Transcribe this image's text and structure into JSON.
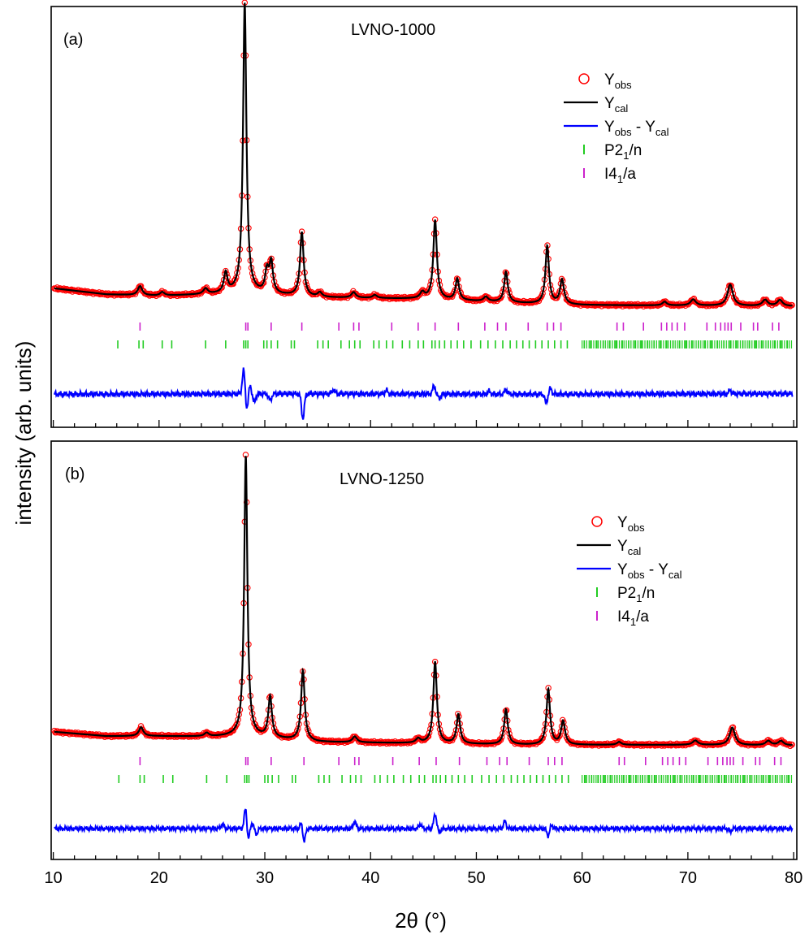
{
  "figure": {
    "ylabel": "intensity (arb. units)",
    "xlabel": "2θ (°)"
  },
  "chart_data": [
    {
      "type": "line",
      "panel_label": "(a)",
      "title": "LVNO-1000",
      "xlim": [
        9.8,
        80.3
      ],
      "x_ticks": [
        10,
        20,
        30,
        40,
        50,
        60,
        70,
        80
      ],
      "legend_position": "top-right",
      "legend": [
        {
          "kind": "circle",
          "main": "Y",
          "sub": "obs",
          "color": "#ff0000"
        },
        {
          "kind": "line",
          "main": "Y",
          "sub": "cal",
          "color": "#000000"
        },
        {
          "kind": "diff",
          "main": "Y",
          "sub": "obs",
          "main2": " -  Y",
          "sub2": "cal",
          "color": "#0000ff"
        },
        {
          "kind": "tick",
          "main": "P2",
          "sub": "1",
          "tail": "/n",
          "color": "#22cc22"
        },
        {
          "kind": "tick",
          "main": "I4",
          "sub": "1",
          "tail": "/a",
          "color": "#cc22cc"
        }
      ],
      "background": [
        [
          10,
          0.075
        ],
        [
          15,
          0.055
        ],
        [
          20,
          0.05
        ],
        [
          25,
          0.055
        ],
        [
          28,
          0.06
        ],
        [
          35,
          0.045
        ],
        [
          45,
          0.04
        ],
        [
          55,
          0.025
        ],
        [
          60,
          0.02
        ],
        [
          70,
          0.018
        ],
        [
          80,
          0.016
        ]
      ],
      "peaks": [
        [
          18.2,
          0.03,
          0.25
        ],
        [
          20.3,
          0.012,
          0.25
        ],
        [
          24.4,
          0.018,
          0.25
        ],
        [
          26.3,
          0.065,
          0.2
        ],
        [
          28.1,
          0.95,
          0.19
        ],
        [
          30.2,
          0.07,
          0.2
        ],
        [
          30.6,
          0.1,
          0.2
        ],
        [
          33.5,
          0.21,
          0.2
        ],
        [
          35.2,
          0.015,
          0.25
        ],
        [
          38.4,
          0.018,
          0.25
        ],
        [
          40.4,
          0.01,
          0.25
        ],
        [
          44.9,
          0.02,
          0.25
        ],
        [
          46.1,
          0.26,
          0.2
        ],
        [
          48.2,
          0.07,
          0.2
        ],
        [
          50.9,
          0.015,
          0.25
        ],
        [
          52.8,
          0.1,
          0.2
        ],
        [
          56.7,
          0.19,
          0.2
        ],
        [
          58.1,
          0.08,
          0.22
        ],
        [
          67.8,
          0.012,
          0.25
        ],
        [
          70.5,
          0.02,
          0.3
        ],
        [
          74.0,
          0.07,
          0.3
        ],
        [
          77.3,
          0.02,
          0.3
        ],
        [
          78.7,
          0.02,
          0.3
        ]
      ],
      "difference_features": [
        [
          28.0,
          0.055
        ],
        [
          28.3,
          -0.035
        ],
        [
          28.6,
          0.02
        ],
        [
          29.0,
          -0.02
        ],
        [
          30.5,
          -0.015
        ],
        [
          33.6,
          -0.055
        ],
        [
          36.5,
          0.01
        ],
        [
          41.5,
          0.008
        ],
        [
          46.0,
          0.018
        ],
        [
          46.5,
          -0.01
        ],
        [
          51.2,
          0.006
        ],
        [
          52.8,
          0.01
        ],
        [
          56.6,
          -0.02
        ],
        [
          57.0,
          0.012
        ],
        [
          74.0,
          0.008
        ]
      ],
      "reflections": {
        "I4_1/a": [
          18.2,
          28.2,
          28.4,
          30.6,
          33.5,
          37.0,
          38.4,
          38.9,
          42.0,
          44.5,
          46.1,
          48.3,
          50.8,
          52.0,
          52.8,
          54.9,
          56.7,
          57.3,
          58.0,
          63.3,
          63.9,
          65.8,
          67.5,
          68.0,
          68.5,
          69.0,
          69.7,
          71.8,
          72.6,
          73.1,
          73.5,
          73.8,
          74.1,
          75.0,
          76.2,
          76.6,
          78.0,
          78.6
        ],
        "P2_1/n": [
          16.1,
          18.1,
          18.5,
          20.3,
          21.2,
          24.4,
          26.3,
          28.0,
          28.2,
          28.4,
          29.9,
          30.2,
          30.6,
          31.2,
          32.5,
          32.8,
          35.0,
          35.5,
          36.0,
          37.2,
          38.0,
          38.5,
          39.0,
          40.3,
          40.8,
          41.5,
          42.1,
          43.0,
          43.7,
          44.5,
          45.0,
          45.8,
          46.1,
          46.5,
          47.0,
          47.6,
          48.2,
          48.8,
          49.5,
          50.4,
          51.1,
          51.8,
          52.5,
          53.2,
          53.8,
          54.4,
          55.0,
          55.6,
          56.2,
          56.8,
          57.4,
          58.0,
          58.6,
          60.2,
          60.8,
          61.4,
          62.0,
          62.6,
          63.2,
          63.8,
          64.4,
          65.0,
          65.6,
          66.2,
          66.8,
          67.4,
          68.0,
          68.6,
          69.2,
          69.8,
          70.4,
          71.0,
          71.6,
          72.2,
          72.8,
          73.4,
          74.0,
          74.6,
          75.2,
          75.8,
          76.4,
          77.0,
          77.6,
          78.2,
          78.8,
          79.4
        ]
      }
    },
    {
      "type": "line",
      "panel_label": "(b)",
      "title": "LVNO-1250",
      "xlim": [
        9.8,
        80.3
      ],
      "x_ticks": [
        10,
        20,
        30,
        40,
        50,
        60,
        70,
        80
      ],
      "legend_position": "top-right",
      "legend": [
        {
          "kind": "circle",
          "main": "Y",
          "sub": "obs",
          "color": "#ff0000"
        },
        {
          "kind": "line",
          "main": "Y",
          "sub": "cal",
          "color": "#000000"
        },
        {
          "kind": "diff",
          "main": "Y",
          "sub": "obs",
          "main2": " -  Y",
          "sub2": "cal",
          "color": "#0000ff"
        },
        {
          "kind": "tick",
          "main": "P2",
          "sub": "1",
          "tail": "/n",
          "color": "#22cc22"
        },
        {
          "kind": "tick",
          "main": "I4",
          "sub": "1",
          "tail": "/a",
          "color": "#cc22cc"
        }
      ],
      "background": [
        [
          10,
          0.045
        ],
        [
          15,
          0.03
        ],
        [
          20,
          0.03
        ],
        [
          25,
          0.028
        ],
        [
          28,
          0.03
        ],
        [
          35,
          0.01
        ],
        [
          45,
          0.005
        ],
        [
          55,
          0.0
        ],
        [
          60,
          0.0
        ],
        [
          70,
          0.0
        ],
        [
          80,
          -0.002
        ]
      ],
      "peaks": [
        [
          18.3,
          0.03,
          0.25
        ],
        [
          24.5,
          0.012,
          0.25
        ],
        [
          28.2,
          0.96,
          0.18
        ],
        [
          30.5,
          0.14,
          0.2
        ],
        [
          33.6,
          0.24,
          0.2
        ],
        [
          38.5,
          0.02,
          0.25
        ],
        [
          44.5,
          0.015,
          0.25
        ],
        [
          46.1,
          0.28,
          0.2
        ],
        [
          48.3,
          0.1,
          0.2
        ],
        [
          52.8,
          0.12,
          0.2
        ],
        [
          56.8,
          0.19,
          0.2
        ],
        [
          58.2,
          0.08,
          0.22
        ],
        [
          63.5,
          0.01,
          0.25
        ],
        [
          70.7,
          0.015,
          0.3
        ],
        [
          74.2,
          0.06,
          0.3
        ],
        [
          77.6,
          0.015,
          0.3
        ],
        [
          78.8,
          0.015,
          0.3
        ]
      ],
      "difference_features": [
        [
          26.0,
          0.012
        ],
        [
          28.2,
          0.065
        ],
        [
          28.4,
          -0.04
        ],
        [
          28.8,
          0.015
        ],
        [
          29.2,
          -0.015
        ],
        [
          33.7,
          -0.04
        ],
        [
          33.5,
          0.02
        ],
        [
          38.5,
          0.02
        ],
        [
          44.7,
          0.012
        ],
        [
          46.1,
          0.04
        ],
        [
          46.5,
          -0.01
        ],
        [
          52.7,
          0.02
        ],
        [
          56.8,
          -0.02
        ],
        [
          57.1,
          0.01
        ],
        [
          74.0,
          -0.008
        ]
      ],
      "reflections": {
        "I4_1/a": [
          18.2,
          28.2,
          28.4,
          30.6,
          33.7,
          37.0,
          38.5,
          38.9,
          42.1,
          44.6,
          46.2,
          48.4,
          51.0,
          52.2,
          52.9,
          55.0,
          56.8,
          57.4,
          58.1,
          63.5,
          64.0,
          66.0,
          67.6,
          68.1,
          68.6,
          69.2,
          69.8,
          71.9,
          72.8,
          73.3,
          73.7,
          74.0,
          74.3,
          75.2,
          76.4,
          76.8,
          78.2,
          78.8
        ],
        "P2_1/n": [
          16.2,
          18.2,
          18.6,
          20.4,
          21.3,
          24.5,
          26.4,
          28.1,
          28.3,
          28.5,
          30.0,
          30.3,
          30.7,
          31.3,
          32.6,
          32.9,
          35.1,
          35.6,
          36.1,
          37.3,
          38.1,
          38.6,
          39.1,
          40.4,
          40.9,
          41.6,
          42.2,
          43.1,
          43.8,
          44.6,
          45.1,
          45.9,
          46.2,
          46.6,
          47.1,
          47.7,
          48.3,
          48.9,
          49.6,
          50.5,
          51.2,
          51.9,
          52.6,
          53.3,
          53.9,
          54.5,
          55.1,
          55.7,
          56.3,
          56.9,
          57.5,
          58.1,
          58.7,
          60.3,
          60.9,
          61.5,
          62.1,
          62.7,
          63.3,
          63.9,
          64.5,
          65.1,
          65.7,
          66.3,
          66.9,
          67.5,
          68.1,
          68.7,
          69.3,
          69.9,
          70.5,
          71.1,
          71.7,
          72.3,
          72.9,
          73.5,
          74.1,
          74.7,
          75.3,
          75.9,
          76.5,
          77.1,
          77.7,
          78.3,
          78.9,
          79.5
        ]
      }
    }
  ]
}
